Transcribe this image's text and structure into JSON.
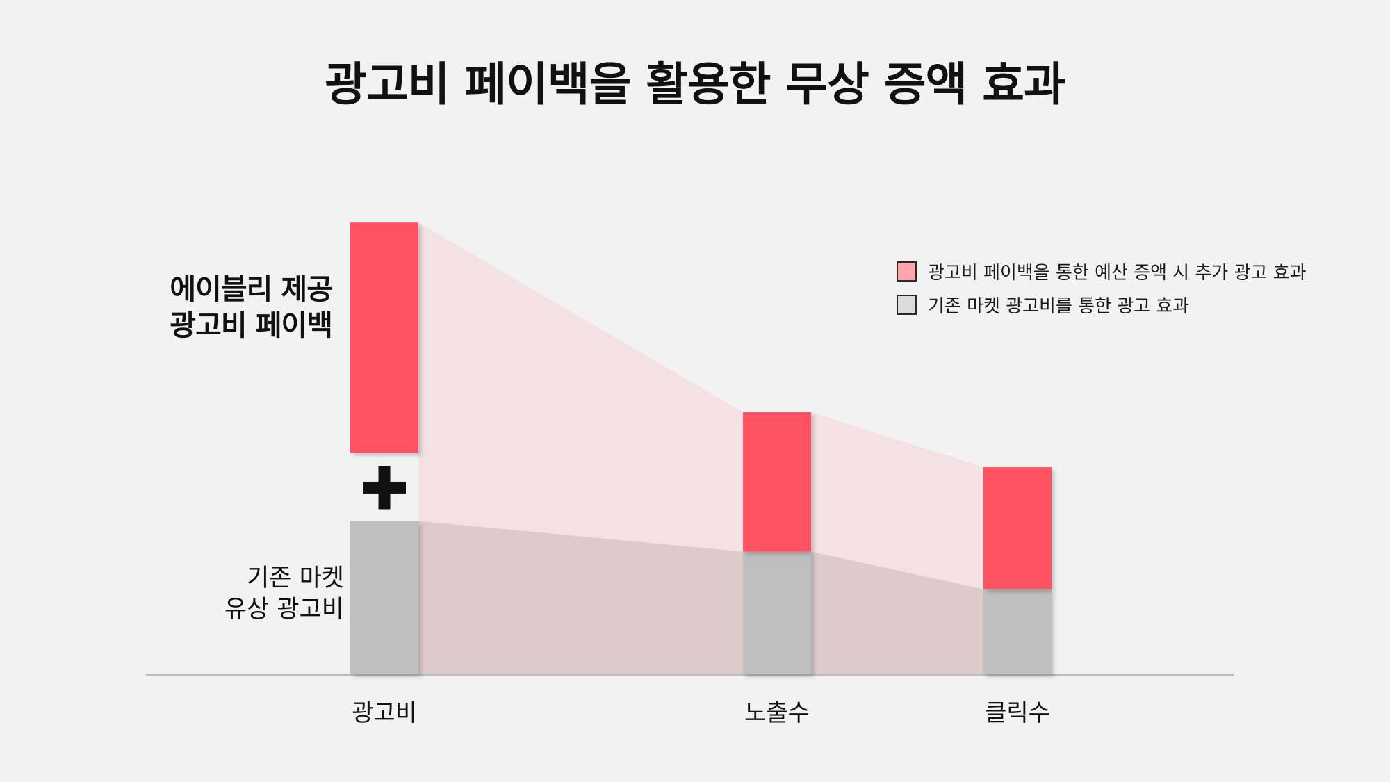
{
  "chart_data": {
    "type": "bar",
    "stacked": true,
    "title": "광고비 페이백을 활용한 무상 증액 효과",
    "categories": [
      "광고비",
      "노출수",
      "클릭수"
    ],
    "series": [
      {
        "name": "기존 마켓 광고비를 통한 광고 효과",
        "color": "#bfbfbf",
        "values": [
          24.5,
          19.6,
          13.6
        ]
      },
      {
        "name": "광고비 페이백을 통한 예산 증액 시 추가 광고 효과",
        "color": "#ff5364",
        "values": [
          36.8,
          22.3,
          19.5
        ]
      }
    ],
    "gap_after_base_in_first_category": 10.9,
    "ylim": [
      0,
      100
    ],
    "grid": false,
    "legend_position": "top-right",
    "annotations": {
      "top_label": [
        "에이블리 제공",
        "광고비 페이백"
      ],
      "bottom_label": [
        "기존 마켓",
        "유상 광고비"
      ],
      "plus_symbol": "+"
    },
    "colors": {
      "flow_top": "#f3e1e3",
      "flow_bottom": "#ddcacb",
      "legend_top_swatch": "#ffa5ad",
      "legend_bottom_swatch": "#dcdcdc",
      "baseline": "#bdbdbd"
    }
  }
}
